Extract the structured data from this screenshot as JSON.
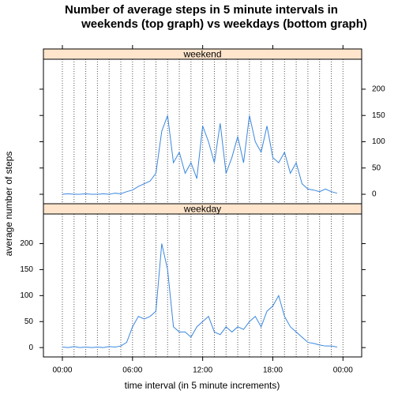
{
  "chart_data": {
    "type": "line",
    "title": [
      "Number of average steps in 5 minute intervals in",
      "weekends (top graph) vs weekdays (bottom graph)"
    ],
    "xlabel": "time interval (in 5 minute increments)",
    "ylabel": "average number of steps",
    "color": "#3a87e0",
    "strip_color": "#ffe5cc",
    "x": [
      0,
      0.5,
      1,
      1.5,
      2,
      2.5,
      3,
      3.5,
      4,
      4.5,
      5,
      5.5,
      6,
      6.5,
      7,
      7.5,
      8,
      8.5,
      9,
      9.5,
      10,
      10.5,
      11,
      11.5,
      12,
      12.5,
      13,
      13.5,
      14,
      14.5,
      15,
      15.5,
      16,
      16.5,
      17,
      17.5,
      18,
      18.5,
      19,
      19.5,
      20,
      20.5,
      21,
      21.5,
      22,
      22.5,
      23,
      23.5
    ],
    "xlim": [
      -1.62,
      25.6
    ],
    "xticks": [
      {
        "value": 0,
        "label": "00:00"
      },
      {
        "value": 6,
        "label": "06:00"
      },
      {
        "value": 12,
        "label": "12:00"
      },
      {
        "value": 18,
        "label": "18:00"
      },
      {
        "value": 24,
        "label": "00:00"
      }
    ],
    "vlines": [
      0,
      1,
      2,
      3,
      4,
      5,
      6,
      7,
      8,
      9,
      10,
      11,
      12,
      13,
      14,
      15,
      16,
      17,
      18,
      19,
      20,
      21,
      22,
      23,
      24
    ],
    "ylim": [
      -18,
      257
    ],
    "yticks": [
      0,
      50,
      100,
      150,
      200
    ],
    "panels": [
      {
        "strip": "weekend",
        "yaxis_side": "right",
        "values": [
          0,
          1,
          0,
          0,
          1,
          0,
          0,
          1,
          0,
          2,
          1,
          5,
          8,
          15,
          20,
          25,
          40,
          120,
          150,
          60,
          80,
          40,
          60,
          30,
          130,
          100,
          60,
          135,
          40,
          70,
          110,
          60,
          150,
          100,
          80,
          130,
          70,
          60,
          80,
          40,
          60,
          20,
          10,
          8,
          5,
          10,
          5,
          2
        ]
      },
      {
        "strip": "weekday",
        "yaxis_side": "left",
        "values": [
          1,
          0,
          2,
          0,
          1,
          0,
          1,
          0,
          2,
          1,
          3,
          10,
          40,
          60,
          55,
          60,
          70,
          200,
          150,
          40,
          30,
          30,
          20,
          40,
          50,
          60,
          30,
          25,
          40,
          30,
          40,
          35,
          50,
          60,
          40,
          70,
          80,
          100,
          60,
          40,
          30,
          20,
          10,
          8,
          5,
          3,
          3,
          1
        ]
      }
    ]
  }
}
